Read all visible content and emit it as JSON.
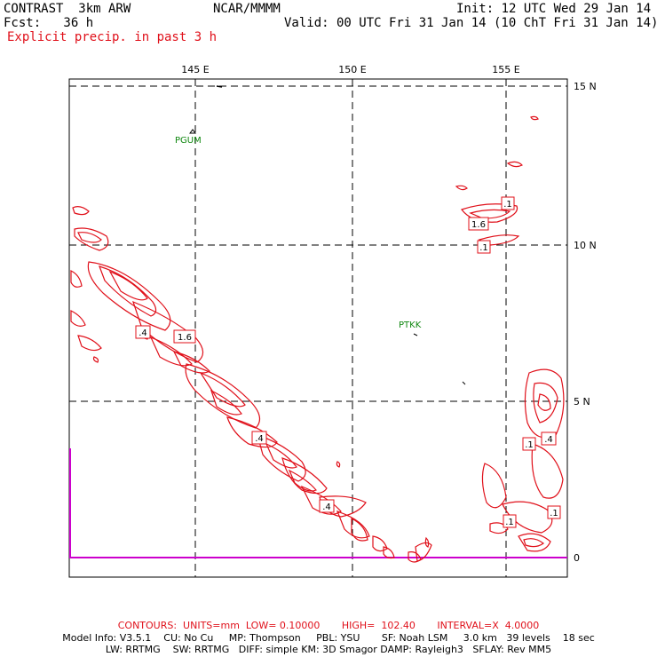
{
  "header": {
    "model": "CONTRAST  3km ARW",
    "org": "NCAR/MMMM",
    "init": "Init: 12 UTC Wed 29 Jan 14",
    "fcst": "Fcst:   36 h",
    "valid": "Valid: 00 UTC Fri 31 Jan 14 (10 ChT Fri 31 Jan 14)",
    "field": "Explicit precip. in past 3 h"
  },
  "map": {
    "lon_labels": [
      "145 E",
      "150 E",
      "155 E"
    ],
    "lat_labels": [
      "15 N",
      "10 N",
      "5 N",
      "0"
    ],
    "stations": [
      "PGUM",
      "PTKK"
    ],
    "contour_labels": [
      ".1",
      "1.6",
      ".1",
      ".4",
      "1.6",
      ".4",
      ".4",
      ".1",
      ".4",
      ".1",
      ".1"
    ],
    "colors": {
      "contour": "#e0101a",
      "grid": "#000000",
      "station": "#118811",
      "terrain": "#cc00cc"
    }
  },
  "footer": {
    "contours": "CONTOURS:  UNITS=mm  LOW= 0.10000       HIGH=  102.40       INTERVAL=X  4.0000",
    "line1": "Model Info: V3.5.1    CU: No Cu     MP: Thompson     PBL: YSU       SF: Noah LSM     3.0 km   39 levels    18 sec",
    "line2": "LW: RRTMG    SW: RRTMG   DIFF: simple KM: 3D Smagor DAMP: Rayleigh3   SFLAY: Rev MM5"
  }
}
